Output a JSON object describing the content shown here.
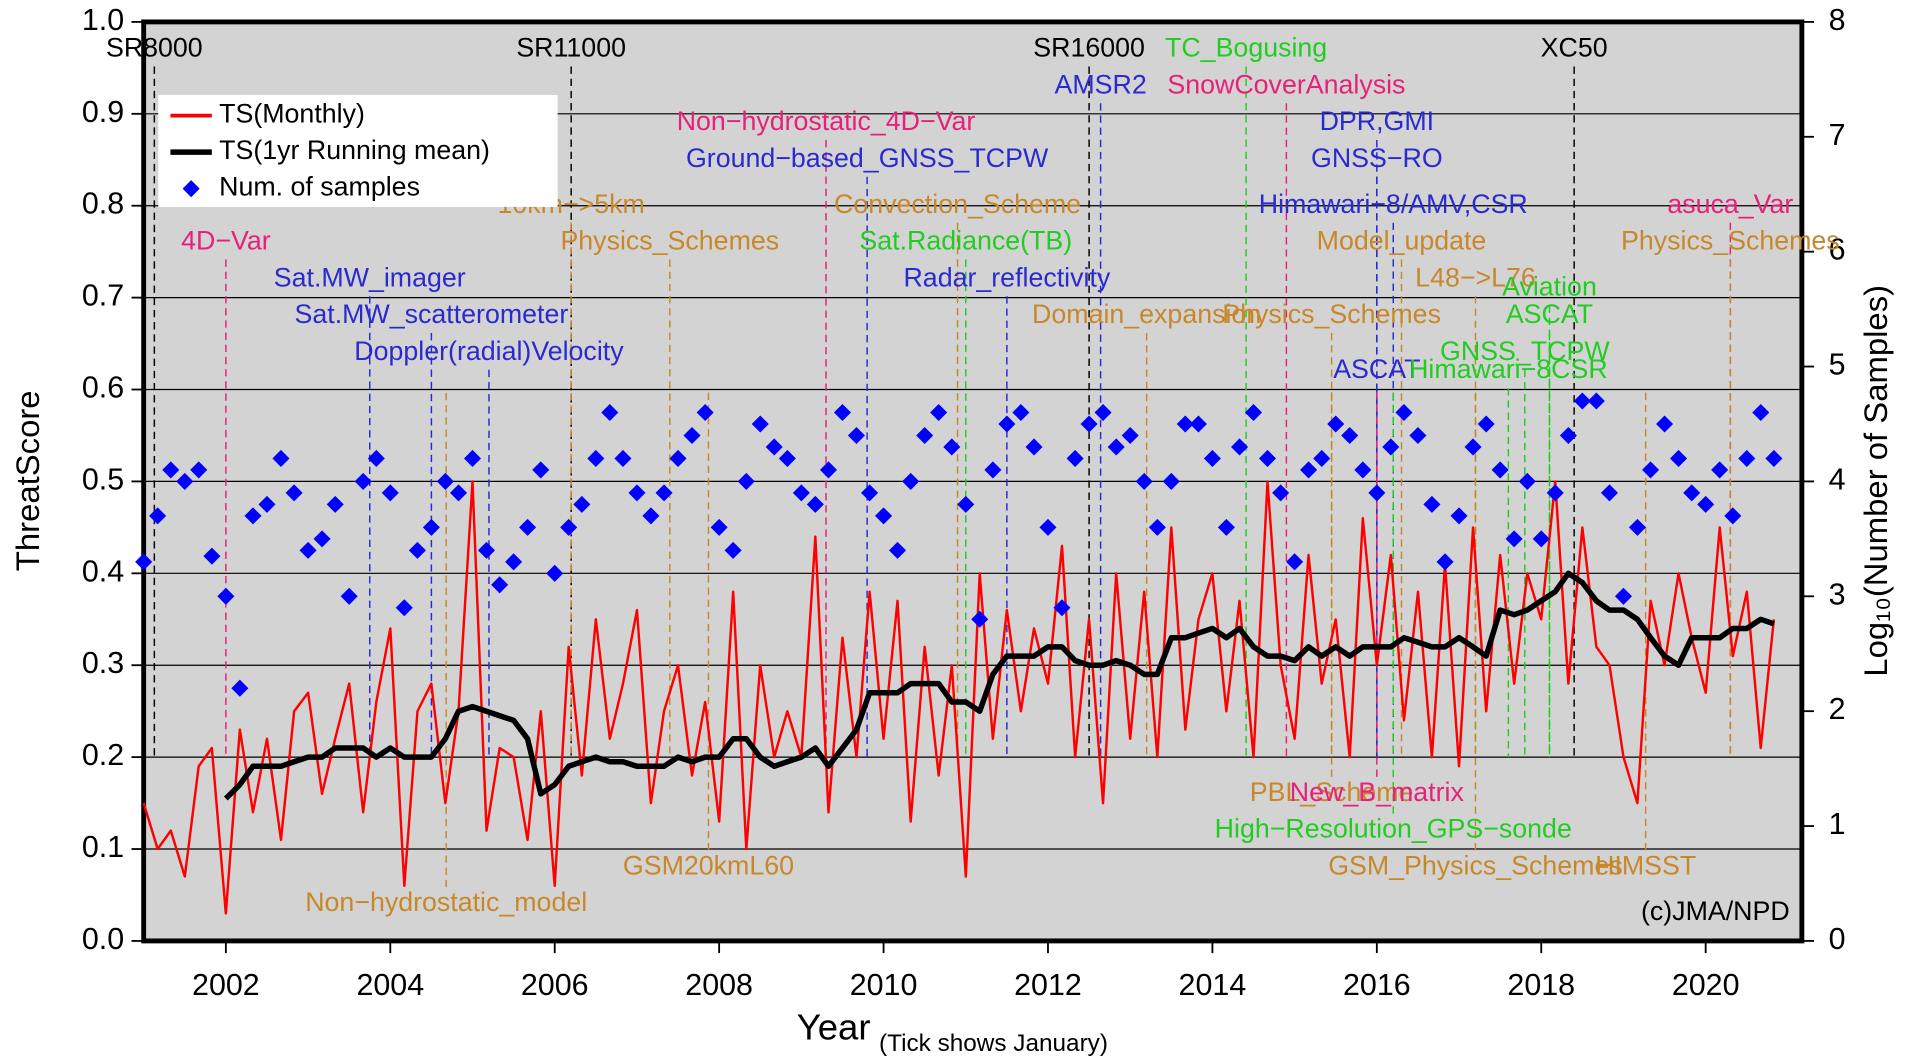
{
  "chart_data": {
    "type": "line",
    "xlabel": "Year",
    "xlabel_note": "(Tick shows January)",
    "ylabel": "ThreatScore",
    "y2label": "Log₁₀(Number of Samples)",
    "credit": "(c)JMA/NPD",
    "xlim": [
      2001,
      2021.17
    ],
    "xticks": [
      2002,
      2004,
      2006,
      2008,
      2010,
      2012,
      2014,
      2016,
      2018,
      2020
    ],
    "ylim": [
      0,
      1
    ],
    "yticks": [
      {
        "value": 0,
        "label": "0.0"
      },
      {
        "value": 0.1,
        "label": "0.1"
      },
      {
        "value": 0.2,
        "label": "0.2"
      },
      {
        "value": 0.3,
        "label": "0.3"
      },
      {
        "value": 0.4,
        "label": "0.4"
      },
      {
        "value": 0.5,
        "label": "0.5"
      },
      {
        "value": 0.6,
        "label": "0.6"
      },
      {
        "value": 0.7,
        "label": "0.7"
      },
      {
        "value": 0.8,
        "label": "0.8"
      },
      {
        "value": 0.9,
        "label": "0.9"
      },
      {
        "value": 1,
        "label": "1.0"
      }
    ],
    "y2lim": [
      0,
      8
    ],
    "y2ticks": [
      0,
      1,
      2,
      3,
      4,
      5,
      6,
      7,
      8
    ],
    "grid": true,
    "legend": "upper left",
    "x": [
      2001,
      2001.17,
      2001.33,
      2001.5,
      2001.67,
      2001.83,
      2002,
      2002.17,
      2002.33,
      2002.5,
      2002.67,
      2002.83,
      2003,
      2003.17,
      2003.33,
      2003.5,
      2003.67,
      2003.83,
      2004,
      2004.17,
      2004.33,
      2004.5,
      2004.67,
      2004.83,
      2005,
      2005.17,
      2005.33,
      2005.5,
      2005.67,
      2005.83,
      2006,
      2006.17,
      2006.33,
      2006.5,
      2006.67,
      2006.83,
      2007,
      2007.17,
      2007.33,
      2007.5,
      2007.67,
      2007.83,
      2008,
      2008.17,
      2008.33,
      2008.5,
      2008.67,
      2008.83,
      2009,
      2009.17,
      2009.33,
      2009.5,
      2009.67,
      2009.83,
      2010,
      2010.17,
      2010.33,
      2010.5,
      2010.67,
      2010.83,
      2011,
      2011.17,
      2011.33,
      2011.5,
      2011.67,
      2011.83,
      2012,
      2012.17,
      2012.33,
      2012.5,
      2012.67,
      2012.83,
      2013,
      2013.17,
      2013.33,
      2013.5,
      2013.67,
      2013.83,
      2014,
      2014.17,
      2014.33,
      2014.5,
      2014.67,
      2014.83,
      2015,
      2015.17,
      2015.33,
      2015.5,
      2015.67,
      2015.83,
      2016,
      2016.17,
      2016.33,
      2016.5,
      2016.67,
      2016.83,
      2017,
      2017.17,
      2017.33,
      2017.5,
      2017.67,
      2017.83,
      2018,
      2018.17,
      2018.33,
      2018.5,
      2018.67,
      2018.83,
      2019,
      2019.17,
      2019.33,
      2019.5,
      2019.67,
      2019.83,
      2020,
      2020.17,
      2020.33,
      2020.5,
      2020.67,
      2020.83
    ],
    "series": [
      {
        "name": "TS(Monthly)",
        "color": "#ff0000",
        "values": [
          0.15,
          0.1,
          0.12,
          0.07,
          0.19,
          0.21,
          0.03,
          0.23,
          0.14,
          0.22,
          0.11,
          0.25,
          0.27,
          0.16,
          0.22,
          0.28,
          0.14,
          0.26,
          0.34,
          0.06,
          0.25,
          0.28,
          0.15,
          0.25,
          0.5,
          0.12,
          0.21,
          0.2,
          0.11,
          0.25,
          0.06,
          0.32,
          0.18,
          0.35,
          0.22,
          0.28,
          0.36,
          0.15,
          0.25,
          0.3,
          0.18,
          0.26,
          0.13,
          0.38,
          0.1,
          0.3,
          0.2,
          0.25,
          0.2,
          0.44,
          0.14,
          0.33,
          0.2,
          0.38,
          0.22,
          0.37,
          0.13,
          0.32,
          0.18,
          0.3,
          0.07,
          0.4,
          0.22,
          0.36,
          0.25,
          0.34,
          0.28,
          0.43,
          0.2,
          0.35,
          0.15,
          0.4,
          0.22,
          0.38,
          0.2,
          0.45,
          0.23,
          0.35,
          0.4,
          0.25,
          0.37,
          0.2,
          0.5,
          0.3,
          0.22,
          0.42,
          0.28,
          0.35,
          0.2,
          0.46,
          0.3,
          0.42,
          0.24,
          0.38,
          0.2,
          0.41,
          0.19,
          0.45,
          0.25,
          0.42,
          0.28,
          0.4,
          0.35,
          0.5,
          0.28,
          0.45,
          0.32,
          0.3,
          0.2,
          0.15,
          0.37,
          0.3,
          0.4,
          0.33,
          0.27,
          0.45,
          0.31,
          0.38,
          0.21,
          0.35
        ]
      },
      {
        "name": "TS(1yr Running mean)",
        "color": "#000000",
        "values": [
          null,
          null,
          null,
          null,
          null,
          null,
          0.155,
          0.17,
          0.19,
          0.19,
          0.19,
          0.195,
          0.2,
          0.2,
          0.21,
          0.21,
          0.21,
          0.2,
          0.21,
          0.2,
          0.2,
          0.2,
          0.22,
          0.25,
          0.255,
          0.25,
          0.245,
          0.24,
          0.22,
          0.16,
          0.17,
          0.19,
          0.195,
          0.2,
          0.195,
          0.195,
          0.19,
          0.19,
          0.19,
          0.2,
          0.195,
          0.2,
          0.2,
          0.22,
          0.22,
          0.2,
          0.19,
          0.195,
          0.2,
          0.21,
          0.19,
          0.21,
          0.23,
          0.27,
          0.27,
          0.27,
          0.28,
          0.28,
          0.28,
          0.26,
          0.26,
          0.25,
          0.29,
          0.31,
          0.31,
          0.31,
          0.32,
          0.32,
          0.305,
          0.3,
          0.3,
          0.305,
          0.3,
          0.29,
          0.29,
          0.33,
          0.33,
          0.335,
          0.34,
          0.33,
          0.34,
          0.32,
          0.31,
          0.31,
          0.305,
          0.32,
          0.31,
          0.32,
          0.31,
          0.32,
          0.32,
          0.32,
          0.33,
          0.325,
          0.32,
          0.32,
          0.33,
          0.32,
          0.31,
          0.36,
          0.355,
          0.36,
          0.37,
          0.38,
          0.4,
          0.39,
          0.37,
          0.36,
          0.36,
          0.35,
          0.33,
          0.31,
          0.3,
          0.33,
          0.33,
          0.33,
          0.34,
          0.34,
          0.35,
          0.345
        ]
      },
      {
        "name": "Num. of samples",
        "color": "#0000ff",
        "type": "scatter",
        "axis": "y2",
        "values": [
          3.3,
          3.7,
          4.1,
          4.0,
          4.1,
          3.35,
          3.0,
          2.2,
          3.7,
          3.8,
          4.2,
          3.9,
          3.4,
          3.5,
          3.8,
          3.0,
          4.0,
          4.2,
          3.9,
          2.9,
          3.4,
          3.6,
          4.0,
          3.9,
          4.2,
          3.4,
          3.1,
          3.3,
          3.6,
          4.1,
          3.2,
          3.6,
          3.8,
          4.2,
          4.6,
          4.2,
          3.9,
          3.7,
          3.9,
          4.2,
          4.4,
          4.6,
          3.6,
          3.4,
          4.0,
          4.5,
          4.3,
          4.2,
          3.9,
          3.8,
          4.1,
          4.6,
          4.4,
          3.9,
          3.7,
          3.4,
          4.0,
          4.4,
          4.6,
          4.3,
          3.8,
          2.8,
          4.1,
          4.5,
          4.6,
          4.3,
          3.6,
          2.9,
          4.2,
          4.5,
          4.6,
          4.3,
          4.4,
          4.0,
          3.6,
          4.0,
          4.5,
          4.5,
          4.2,
          3.6,
          4.3,
          4.6,
          4.2,
          3.9,
          3.3,
          4.1,
          4.2,
          4.5,
          4.4,
          4.1,
          3.9,
          4.3,
          4.6,
          4.4,
          3.8,
          3.3,
          3.7,
          4.3,
          4.5,
          4.1,
          3.5,
          4.0,
          3.5,
          3.9,
          4.4,
          4.7,
          4.7,
          3.9,
          3.0,
          3.6,
          4.1,
          4.5,
          4.2,
          3.9,
          3.8,
          4.1,
          3.7,
          4.2,
          4.6,
          4.2
        ]
      }
    ],
    "annotations": [
      {
        "text": "SR8000",
        "x": 2001.13,
        "y": 0.97,
        "color": "#000000"
      },
      {
        "text": "SR11000",
        "x": 2006.2,
        "y": 0.97,
        "color": "#000000"
      },
      {
        "text": "SR16000",
        "x": 2012.5,
        "y": 0.97,
        "color": "#000000"
      },
      {
        "text": "TC_Bogusing",
        "x": 2014.41,
        "y": 0.97,
        "color": "#22cc22"
      },
      {
        "text": "XC50",
        "x": 2018.4,
        "y": 0.97,
        "color": "#000000"
      },
      {
        "text": "AMSR2",
        "x": 2012.64,
        "y": 0.93,
        "color": "#2a2ad0"
      },
      {
        "text": "SnowCoverAnalysis",
        "x": 2014.9,
        "y": 0.93,
        "color": "#e8207a"
      },
      {
        "text": "Non−hydrostatic_4D−Var",
        "x": 2009.3,
        "y": 0.89,
        "color": "#e8207a"
      },
      {
        "text": "DPR,GMI",
        "x": 2016.0,
        "y": 0.89,
        "color": "#2a2ad0"
      },
      {
        "text": "Ground−based_GNSS_TCPW",
        "x": 2009.8,
        "y": 0.85,
        "color": "#2a2ad0"
      },
      {
        "text": "GNSS−RO",
        "x": 2016.0,
        "y": 0.85,
        "color": "#2a2ad0"
      },
      {
        "text": "10km−>5km",
        "x": 2006.2,
        "y": 0.8,
        "color": "#c8882a"
      },
      {
        "text": "Convection_Scheme",
        "x": 2010.9,
        "y": 0.8,
        "color": "#c8882a"
      },
      {
        "text": "Himawari−8/AMV,CSR",
        "x": 2016.2,
        "y": 0.8,
        "color": "#2a2ad0"
      },
      {
        "text": "asuca_Var",
        "x": 2020.3,
        "y": 0.8,
        "color": "#e8207a"
      },
      {
        "text": "4D−Var",
        "x": 2002.0,
        "y": 0.76,
        "color": "#e8207a"
      },
      {
        "text": "Physics_Schemes",
        "x": 2007.4,
        "y": 0.76,
        "color": "#c8882a"
      },
      {
        "text": "Sat.Radiance(TB)",
        "x": 2011.0,
        "y": 0.76,
        "color": "#22cc22"
      },
      {
        "text": "Model_update",
        "x": 2016.3,
        "y": 0.76,
        "color": "#c8882a"
      },
      {
        "text": "Physics_Schemes",
        "x": 2020.3,
        "y": 0.76,
        "color": "#c8882a"
      },
      {
        "text": "Sat.MW_imager",
        "x": 2003.75,
        "y": 0.72,
        "color": "#2a2ad0"
      },
      {
        "text": "Radar_reflectivity",
        "x": 2011.5,
        "y": 0.72,
        "color": "#2a2ad0"
      },
      {
        "text": "L48−>L76",
        "x": 2017.2,
        "y": 0.72,
        "color": "#c8882a"
      },
      {
        "text": "Aviation",
        "x": 2018.1,
        "y": 0.71,
        "color": "#22cc22"
      },
      {
        "text": "Sat.MW_scatterometer",
        "x": 2004.5,
        "y": 0.68,
        "color": "#2a2ad0"
      },
      {
        "text": "Domain_expansion",
        "x": 2013.2,
        "y": 0.68,
        "color": "#c8882a"
      },
      {
        "text": "Physics_Schemes",
        "x": 2015.45,
        "y": 0.68,
        "color": "#c8882a"
      },
      {
        "text": "ASCAT",
        "x": 2018.1,
        "y": 0.68,
        "color": "#22cc22"
      },
      {
        "text": "Doppler(radial)Velocity",
        "x": 2005.2,
        "y": 0.64,
        "color": "#2a2ad0"
      },
      {
        "text": "GNSS_TCPW",
        "x": 2017.8,
        "y": 0.64,
        "color": "#22cc22"
      },
      {
        "text": "ASCAT",
        "x": 2016.0,
        "y": 0.62,
        "color": "#2a2ad0"
      },
      {
        "text": "Himawari−8CSR",
        "x": 2017.6,
        "y": 0.62,
        "color": "#22cc22"
      },
      {
        "text": "PBL_Scheme",
        "x": 2015.45,
        "y": 0.16,
        "color": "#c8882a"
      },
      {
        "text": "New_B_matrix",
        "x": 2016.0,
        "y": 0.16,
        "color": "#e8207a"
      },
      {
        "text": "High−Resolution_GPS−sonde",
        "x": 2016.2,
        "y": 0.12,
        "color": "#22cc22"
      },
      {
        "text": "GSM20kmL60",
        "x": 2007.87,
        "y": 0.08,
        "color": "#c8882a"
      },
      {
        "text": "GSM_Physics_Schemes",
        "x": 2017.2,
        "y": 0.08,
        "color": "#c8882a"
      },
      {
        "text": "HIMSST",
        "x": 2019.27,
        "y": 0.08,
        "color": "#c8882a"
      },
      {
        "text": "Non−hydrostatic_model",
        "x": 2004.68,
        "y": 0.04,
        "color": "#c8882a"
      }
    ]
  }
}
